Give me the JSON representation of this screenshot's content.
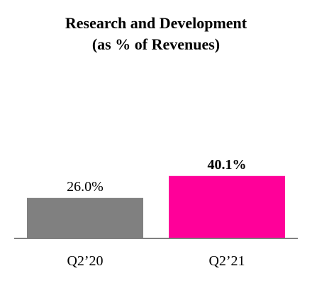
{
  "chart_data": {
    "type": "bar",
    "title": "Research and Development",
    "subtitle": "(as % of Revenues)",
    "categories": [
      "Q2’20",
      "Q2’21"
    ],
    "values": [
      26.0,
      40.1
    ],
    "data_labels": [
      "26.0%",
      "40.1%"
    ],
    "data_label_bold": [
      false,
      true
    ],
    "colors": [
      "#808080",
      "#FF0099"
    ],
    "axis_color": "#808080",
    "ylim": [
      0,
      60
    ],
    "grid": false,
    "legend": "none"
  }
}
